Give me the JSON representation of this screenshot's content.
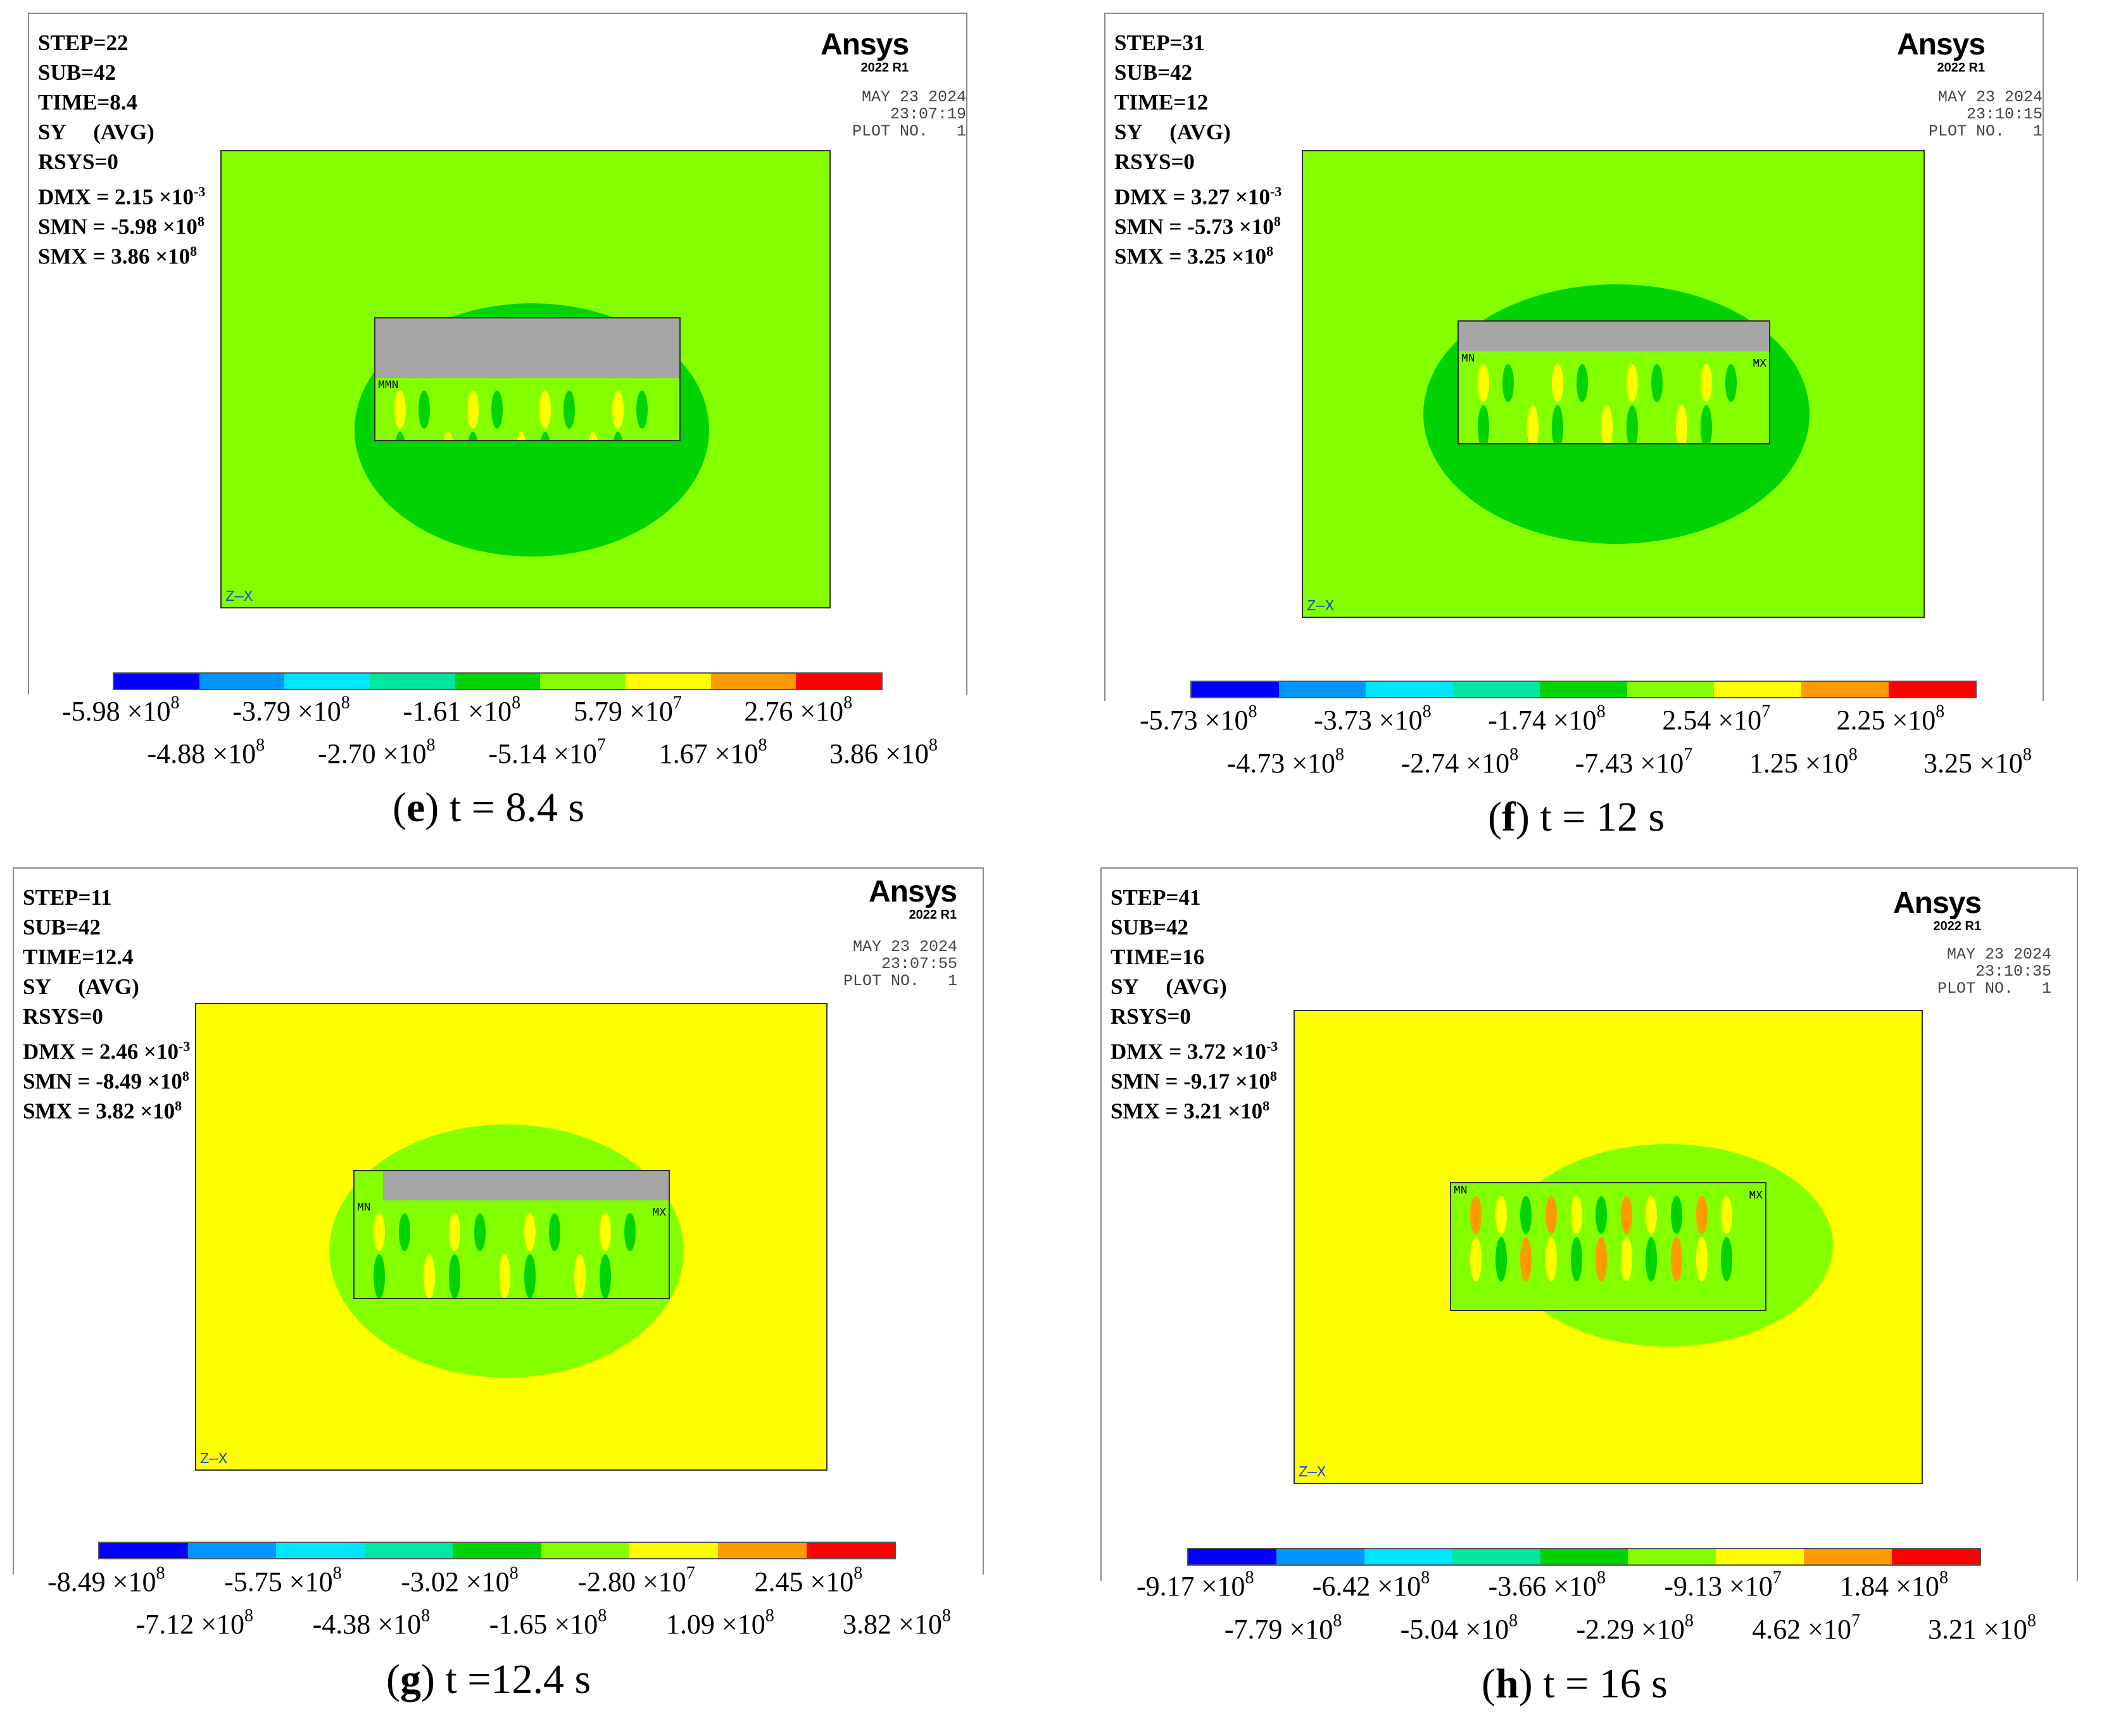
{
  "brand": {
    "logo": "Ansys",
    "version": "2022 R1"
  },
  "colors": [
    "#0000ff",
    "#0096ff",
    "#00e5ff",
    "#00e5a0",
    "#00d300",
    "#84ff00",
    "#ffff00",
    "#ff9a00",
    "#ff0000"
  ],
  "panels": [
    {
      "id": "e",
      "info": {
        "step": "STEP=22",
        "sub": "SUB=42",
        "time": "TIME=8.4",
        "result": "SY     (AVG)",
        "rsys": "RSYS=0",
        "dmx": {
          "label": "DMX = 2.15 ×10",
          "exp": "-3"
        },
        "smn": {
          "label": "SMN = -5.98 ×10",
          "exp": "8"
        },
        "smx": {
          "label": "SMX = 3.86 ×10",
          "exp": "8"
        }
      },
      "date": "MAY 23 2024",
      "clock": "23:07:19",
      "plot": "PLOT NO.   1",
      "min_label": "MMN",
      "max_label": "",
      "ticks_top": [
        {
          "b": "-5.98 ×10",
          "e": "8"
        },
        {
          "b": "-3.79 ×10",
          "e": "8"
        },
        {
          "b": "-1.61 ×10",
          "e": "8"
        },
        {
          "b": "5.79 ×10",
          "e": "7"
        },
        {
          "b": "2.76 ×10",
          "e": "8"
        }
      ],
      "ticks_bottom": [
        {
          "b": "-4.88 ×10",
          "e": "8"
        },
        {
          "b": "-2.70 ×10",
          "e": "8"
        },
        {
          "b": "-5.14 ×10",
          "e": "7"
        },
        {
          "b": "1.67 ×10",
          "e": "8"
        },
        {
          "b": "3.86 ×10",
          "e": "8"
        }
      ],
      "caption": {
        "letter": "e",
        "text": " t = 8.4 s"
      }
    },
    {
      "id": "f",
      "info": {
        "step": "STEP=31",
        "sub": "SUB=42",
        "time": "TIME=12",
        "result": "SY     (AVG)",
        "rsys": "RSYS=0",
        "dmx": {
          "label": "DMX = 3.27 ×10",
          "exp": "-3"
        },
        "smn": {
          "label": "SMN = -5.73 ×10",
          "exp": "8"
        },
        "smx": {
          "label": "SMX = 3.25 ×10",
          "exp": "8"
        }
      },
      "date": "MAY 23 2024",
      "clock": "23:10:15",
      "plot": "PLOT NO.   1",
      "min_label": "MN",
      "max_label": "MX",
      "ticks_top": [
        {
          "b": "-5.73 ×10",
          "e": "8"
        },
        {
          "b": "-3.73 ×10",
          "e": "8"
        },
        {
          "b": "-1.74 ×10",
          "e": "8"
        },
        {
          "b": "2.54 ×10",
          "e": "7"
        },
        {
          "b": "2.25 ×10",
          "e": "8"
        }
      ],
      "ticks_bottom": [
        {
          "b": "-4.73 ×10",
          "e": "8"
        },
        {
          "b": "-2.74 ×10",
          "e": "8"
        },
        {
          "b": "-7.43 ×10",
          "e": "7"
        },
        {
          "b": "1.25 ×10",
          "e": "8"
        },
        {
          "b": "3.25 ×10",
          "e": "8"
        }
      ],
      "caption": {
        "letter": "f",
        "text": " t = 12 s"
      }
    },
    {
      "id": "g",
      "info": {
        "step": "STEP=11",
        "sub": "SUB=42",
        "time": "TIME=12.4",
        "result": "SY     (AVG)",
        "rsys": "RSYS=0",
        "dmx": {
          "label": "DMX = 2.46 ×10",
          "exp": "-3"
        },
        "smn": {
          "label": "SMN = -8.49 ×10",
          "exp": "8"
        },
        "smx": {
          "label": "SMX = 3.82 ×10",
          "exp": "8"
        }
      },
      "date": "MAY 23 2024",
      "clock": "23:07:55",
      "plot": "PLOT NO.   1",
      "min_label": "MN",
      "max_label": "MX",
      "ticks_top": [
        {
          "b": "-8.49 ×10",
          "e": "8"
        },
        {
          "b": "-5.75 ×10",
          "e": "8"
        },
        {
          "b": "-3.02 ×10",
          "e": "8"
        },
        {
          "b": "-2.80 ×10",
          "e": "7"
        },
        {
          "b": "2.45 ×10",
          "e": "8"
        }
      ],
      "ticks_bottom": [
        {
          "b": "-7.12 ×10",
          "e": "8"
        },
        {
          "b": "-4.38 ×10",
          "e": "8"
        },
        {
          "b": "-1.65 ×10",
          "e": "8"
        },
        {
          "b": "1.09 ×10",
          "e": "8"
        },
        {
          "b": "3.82 ×10",
          "e": "8"
        }
      ],
      "caption": {
        "letter": "g",
        "text": " t =12.4 s"
      }
    },
    {
      "id": "h",
      "info": {
        "step": "STEP=41",
        "sub": "SUB=42",
        "time": "TIME=16",
        "result": "SY     (AVG)",
        "rsys": "RSYS=0",
        "dmx": {
          "label": "DMX = 3.72 ×10",
          "exp": "-3"
        },
        "smn": {
          "label": "SMN = -9.17 ×10",
          "exp": "8"
        },
        "smx": {
          "label": "SMX = 3.21 ×10",
          "exp": "8"
        }
      },
      "date": "MAY 23 2024",
      "clock": "23:10:35",
      "plot": "PLOT NO.   1",
      "min_label": "MN",
      "max_label": "MX",
      "ticks_top": [
        {
          "b": "-9.17 ×10",
          "e": "8"
        },
        {
          "b": "-6.42 ×10",
          "e": "8"
        },
        {
          "b": "-3.66 ×10",
          "e": "8"
        },
        {
          "b": "-9.13 ×10",
          "e": "7"
        },
        {
          "b": "1.84 ×10",
          "e": "8"
        }
      ],
      "ticks_bottom": [
        {
          "b": "-7.79 ×10",
          "e": "8"
        },
        {
          "b": "-5.04 ×10",
          "e": "8"
        },
        {
          "b": "-2.29 ×10",
          "e": "8"
        },
        {
          "b": "4.62 ×10",
          "e": "7"
        },
        {
          "b": "3.21 ×10",
          "e": "8"
        }
      ],
      "caption": {
        "letter": "h",
        "text": " t = 16 s"
      }
    }
  ],
  "axes": {
    "z": "Z",
    "x": "X"
  }
}
